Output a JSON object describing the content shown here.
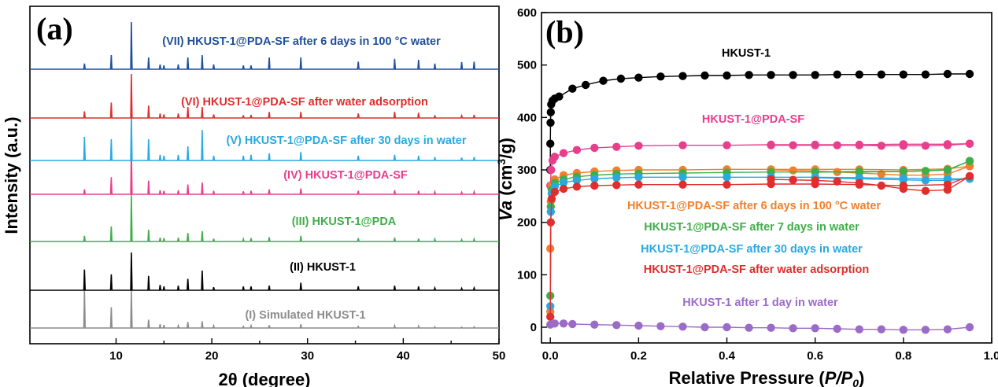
{
  "chart_data": [
    {
      "type": "line",
      "panel_label": "(a)",
      "xlabel": "2θ (degree)",
      "ylabel": "Intensity (a.u.)",
      "xlim": [
        1,
        50
      ],
      "xticks": [
        10,
        20,
        30,
        40,
        50
      ],
      "peaks": [
        6.7,
        9.5,
        11.6,
        13.4,
        14.6,
        15.0,
        16.5,
        17.5,
        19.0,
        20.2,
        23.3,
        24.1,
        26.0,
        29.3,
        35.3,
        39.1,
        41.6,
        43.3,
        46.1,
        47.4
      ],
      "series": [
        {
          "name": "(I) Simulated HKUST-1",
          "color": "#8c8c8c",
          "intensities": [
            1.0,
            0.55,
            1.0,
            0.22,
            0.1,
            0.08,
            0.06,
            0.16,
            0.18,
            0.06,
            0.04,
            0.06,
            0.07,
            0.1,
            0.04,
            0.06,
            0.05,
            0.03,
            0.02,
            0.03
          ]
        },
        {
          "name": "(II) HKUST-1",
          "color": "#000000",
          "intensities": [
            0.55,
            0.42,
            1.0,
            0.38,
            0.14,
            0.1,
            0.12,
            0.3,
            0.52,
            0.08,
            0.1,
            0.1,
            0.12,
            0.2,
            0.1,
            0.12,
            0.1,
            0.06,
            0.05,
            0.06
          ]
        },
        {
          "name": "(III) HKUST-1@PDA",
          "color": "#3fae49",
          "intensities": [
            0.12,
            0.32,
            1.0,
            0.25,
            0.08,
            0.07,
            0.08,
            0.18,
            0.22,
            0.06,
            0.05,
            0.07,
            0.09,
            0.12,
            0.07,
            0.08,
            0.06,
            0.05,
            0.04,
            0.05
          ]
        },
        {
          "name": "(IV) HKUST-1@PDA-SF",
          "color": "#e83e8c",
          "intensities": [
            0.1,
            0.35,
            1.0,
            0.28,
            0.08,
            0.07,
            0.08,
            0.2,
            0.24,
            0.07,
            0.06,
            0.07,
            0.1,
            0.12,
            0.07,
            0.08,
            0.07,
            0.05,
            0.04,
            0.05
          ]
        },
        {
          "name": "(V) HKUST-1@PDA-SF after 30 days in water",
          "color": "#29a9e1",
          "intensities": [
            0.5,
            0.45,
            1.0,
            0.45,
            0.12,
            0.1,
            0.12,
            0.3,
            0.65,
            0.1,
            0.1,
            0.12,
            0.15,
            0.18,
            0.1,
            0.12,
            0.1,
            0.07,
            0.06,
            0.07
          ]
        },
        {
          "name": "(VI) HKUST-1@PDA-SF after water adsorption",
          "color": "#e02d2d",
          "intensities": [
            0.15,
            0.35,
            1.0,
            0.28,
            0.1,
            0.08,
            0.1,
            0.25,
            0.25,
            0.08,
            0.06,
            0.07,
            0.14,
            0.14,
            0.1,
            0.14,
            0.12,
            0.06,
            0.05,
            0.07
          ]
        },
        {
          "name": "(VII) HKUST-1@PDA-SF after 6 days in 100 °C water",
          "color": "#1f4e9a",
          "intensities": [
            0.12,
            0.3,
            1.0,
            0.25,
            0.1,
            0.08,
            0.1,
            0.25,
            0.3,
            0.1,
            0.08,
            0.08,
            0.25,
            0.25,
            0.16,
            0.22,
            0.2,
            0.12,
            0.15,
            0.16
          ]
        }
      ]
    },
    {
      "type": "scatter",
      "panel_label": "(b)",
      "xlabel_prefix": "Relative Pressure (",
      "xlabel_italic": "P/P",
      "xlabel_sub": "0",
      "xlabel_suffix": ")",
      "ylabel_italic": "Va",
      "ylabel_rest": " (cm",
      "ylabel_sup": "3",
      "ylabel_end": "/g)",
      "xlim": [
        -0.02,
        1.0
      ],
      "ylim": [
        -30,
        600
      ],
      "xticks": [
        0.0,
        0.2,
        0.4,
        0.6,
        0.8,
        1.0
      ],
      "xtick_labels": [
        "0.0",
        "0.2",
        "0.4",
        "0.6",
        "0.8",
        "1.0"
      ],
      "yticks": [
        0,
        100,
        200,
        300,
        400,
        500,
        600
      ],
      "series": [
        {
          "name": "HKUST-1",
          "color": "#000000",
          "adsorption": [
            [
              0.0,
              300
            ],
            [
              0.0,
              350
            ],
            [
              0.0005,
              390
            ],
            [
              0.001,
              410
            ],
            [
              0.002,
              425
            ],
            [
              0.005,
              432
            ],
            [
              0.01,
              436
            ],
            [
              0.02,
              440
            ],
            [
              0.05,
              455
            ],
            [
              0.08,
              462
            ],
            [
              0.12,
              470
            ],
            [
              0.16,
              474
            ],
            [
              0.2,
              476
            ],
            [
              0.25,
              478
            ],
            [
              0.3,
              479
            ],
            [
              0.35,
              480
            ],
            [
              0.4,
              480
            ],
            [
              0.45,
              481
            ],
            [
              0.5,
              481
            ],
            [
              0.55,
              481
            ],
            [
              0.6,
              481
            ],
            [
              0.65,
              482
            ],
            [
              0.7,
              482
            ],
            [
              0.75,
              482
            ],
            [
              0.8,
              482
            ],
            [
              0.85,
              482
            ],
            [
              0.9,
              483
            ],
            [
              0.95,
              483
            ]
          ],
          "desorption": []
        },
        {
          "name": "HKUST-1@PDA-SF",
          "color": "#e83e8c",
          "adsorption": [
            [
              0.0,
              270
            ],
            [
              0.002,
              300
            ],
            [
              0.005,
              318
            ],
            [
              0.01,
              325
            ],
            [
              0.03,
              332
            ],
            [
              0.06,
              338
            ],
            [
              0.1,
              342
            ],
            [
              0.15,
              344
            ],
            [
              0.2,
              346
            ],
            [
              0.3,
              347
            ],
            [
              0.4,
              347
            ],
            [
              0.5,
              348
            ],
            [
              0.6,
              348
            ],
            [
              0.7,
              348
            ],
            [
              0.8,
              349
            ],
            [
              0.9,
              349
            ],
            [
              0.95,
              350
            ]
          ],
          "desorption": [
            [
              0.95,
              350
            ],
            [
              0.9,
              347
            ],
            [
              0.85,
              346
            ],
            [
              0.8,
              346
            ],
            [
              0.75,
              346
            ],
            [
              0.7,
              347
            ],
            [
              0.65,
              347
            ],
            [
              0.6,
              347
            ],
            [
              0.55,
              347
            ],
            [
              0.5,
              347
            ]
          ]
        },
        {
          "name": "HKUST-1@PDA-SF after 6 days in 100 °C water",
          "color": "#f37f2b",
          "adsorption": [
            [
              0.0,
              30
            ],
            [
              0.0,
              150
            ],
            [
              0.001,
              240
            ],
            [
              0.003,
              270
            ],
            [
              0.01,
              282
            ],
            [
              0.03,
              290
            ],
            [
              0.06,
              294
            ],
            [
              0.1,
              297
            ],
            [
              0.15,
              299
            ],
            [
              0.2,
              300
            ],
            [
              0.3,
              300
            ],
            [
              0.4,
              301
            ],
            [
              0.5,
              301
            ],
            [
              0.6,
              301
            ],
            [
              0.7,
              301
            ],
            [
              0.8,
              300
            ],
            [
              0.9,
              302
            ],
            [
              0.95,
              307
            ]
          ],
          "desorption": [
            [
              0.95,
              307
            ],
            [
              0.9,
              292
            ],
            [
              0.85,
              290
            ],
            [
              0.8,
              290
            ],
            [
              0.75,
              292
            ],
            [
              0.7,
              294
            ],
            [
              0.65,
              296
            ],
            [
              0.6,
              298
            ],
            [
              0.55,
              299
            ],
            [
              0.5,
              300
            ]
          ]
        },
        {
          "name": "HKUST-1@PDA-SF after 7 days in water",
          "color": "#3fae49",
          "adsorption": [
            [
              0.0,
              60
            ],
            [
              0.001,
              230
            ],
            [
              0.003,
              262
            ],
            [
              0.01,
              275
            ],
            [
              0.03,
              282
            ],
            [
              0.06,
              287
            ],
            [
              0.1,
              290
            ],
            [
              0.15,
              292
            ],
            [
              0.2,
              293
            ],
            [
              0.3,
              294
            ],
            [
              0.4,
              295
            ],
            [
              0.5,
              296
            ],
            [
              0.6,
              296
            ],
            [
              0.7,
              297
            ],
            [
              0.8,
              297
            ],
            [
              0.9,
              300
            ],
            [
              0.95,
              317
            ]
          ],
          "desorption": [
            [
              0.95,
              317
            ],
            [
              0.9,
              300
            ],
            [
              0.85,
              298
            ],
            [
              0.8,
              297
            ],
            [
              0.7,
              296
            ],
            [
              0.6,
              296
            ]
          ]
        },
        {
          "name": "HKUST-1@PDA-SF after 30 days in water",
          "color": "#29a9e1",
          "adsorption": [
            [
              0.0,
              40
            ],
            [
              0.001,
              220
            ],
            [
              0.003,
              255
            ],
            [
              0.01,
              268
            ],
            [
              0.03,
              276
            ],
            [
              0.06,
              280
            ],
            [
              0.1,
              283
            ],
            [
              0.15,
              285
            ],
            [
              0.2,
              286
            ],
            [
              0.3,
              286
            ],
            [
              0.4,
              286
            ],
            [
              0.5,
              286
            ],
            [
              0.6,
              286
            ],
            [
              0.7,
              285
            ],
            [
              0.8,
              284
            ],
            [
              0.9,
              283
            ],
            [
              0.95,
              283
            ]
          ],
          "desorption": [
            [
              0.95,
              283
            ],
            [
              0.9,
              280
            ],
            [
              0.85,
              280
            ],
            [
              0.8,
              281
            ],
            [
              0.7,
              283
            ],
            [
              0.6,
              285
            ]
          ]
        },
        {
          "name": "HKUST-1@PDA-SF after water adsorption",
          "color": "#e02d2d",
          "adsorption": [
            [
              0.0,
              20
            ],
            [
              0.001,
              200
            ],
            [
              0.003,
              245
            ],
            [
              0.01,
              258
            ],
            [
              0.03,
              264
            ],
            [
              0.06,
              268
            ],
            [
              0.1,
              270
            ],
            [
              0.15,
              271
            ],
            [
              0.2,
              272
            ],
            [
              0.3,
              272
            ],
            [
              0.4,
              272
            ],
            [
              0.5,
              273
            ],
            [
              0.6,
              273
            ],
            [
              0.7,
              272
            ],
            [
              0.8,
              270
            ],
            [
              0.9,
              272
            ],
            [
              0.95,
              288
            ]
          ],
          "desorption": [
            [
              0.95,
              288
            ],
            [
              0.9,
              262
            ],
            [
              0.85,
              260
            ],
            [
              0.8,
              264
            ],
            [
              0.75,
              270
            ],
            [
              0.7,
              275
            ],
            [
              0.65,
              278
            ],
            [
              0.6,
              280
            ],
            [
              0.55,
              281
            ],
            [
              0.5,
              282
            ]
          ]
        },
        {
          "name": "HKUST-1 after 1 day in water",
          "color": "#9b6cc7",
          "adsorption": [
            [
              0.0,
              5
            ],
            [
              0.01,
              7
            ],
            [
              0.03,
              7
            ],
            [
              0.05,
              6
            ],
            [
              0.1,
              5
            ],
            [
              0.15,
              4
            ],
            [
              0.2,
              3
            ],
            [
              0.25,
              2
            ],
            [
              0.3,
              1
            ],
            [
              0.35,
              0
            ],
            [
              0.4,
              0
            ],
            [
              0.45,
              -1
            ],
            [
              0.5,
              -1
            ],
            [
              0.55,
              -2
            ],
            [
              0.6,
              -2
            ],
            [
              0.65,
              -3
            ],
            [
              0.7,
              -4
            ],
            [
              0.75,
              -4
            ],
            [
              0.8,
              -5
            ],
            [
              0.85,
              -5
            ],
            [
              0.9,
              -4
            ],
            [
              0.95,
              0
            ]
          ],
          "desorption": []
        }
      ]
    }
  ]
}
